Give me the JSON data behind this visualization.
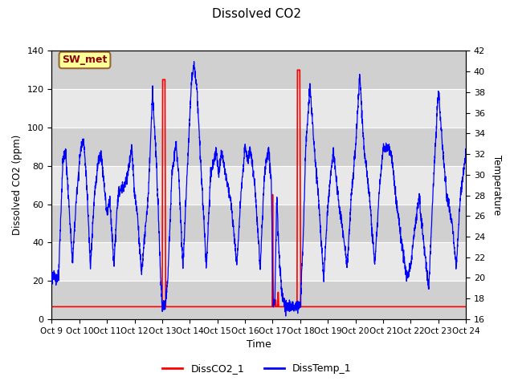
{
  "title": "Dissolved CO2",
  "xlabel": "Time",
  "ylabel_left": "Dissolved CO2 (ppm)",
  "ylabel_right": "Temperature",
  "xlim": [
    0,
    15
  ],
  "ylim_left": [
    0,
    140
  ],
  "ylim_right": [
    16,
    42
  ],
  "xtick_labels": [
    "Oct 9",
    "Oct 10",
    "Oct 11",
    "Oct 12",
    "Oct 13",
    "Oct 14",
    "Oct 15",
    "Oct 16",
    "Oct 17",
    "Oct 18",
    "Oct 19",
    "Oct 20",
    "Oct 21",
    "Oct 22",
    "Oct 23",
    "Oct 24"
  ],
  "yticks_left": [
    0,
    20,
    40,
    60,
    80,
    100,
    120,
    140
  ],
  "yticks_right": [
    16,
    18,
    20,
    22,
    24,
    26,
    28,
    30,
    32,
    34,
    36,
    38,
    40,
    42
  ],
  "legend_label_red": "DissCO2_1",
  "legend_label_blue": "DissTemp_1",
  "annotation_text": "SW_met",
  "annotation_bg": "#ffff99",
  "annotation_border": "#996633",
  "annotation_text_color": "#8b0000",
  "plot_bg_color": "#d8d8d8",
  "band_color_light": "#e8e8e8",
  "band_color_dark": "#d0d0d0",
  "grid_color": "#ffffff"
}
